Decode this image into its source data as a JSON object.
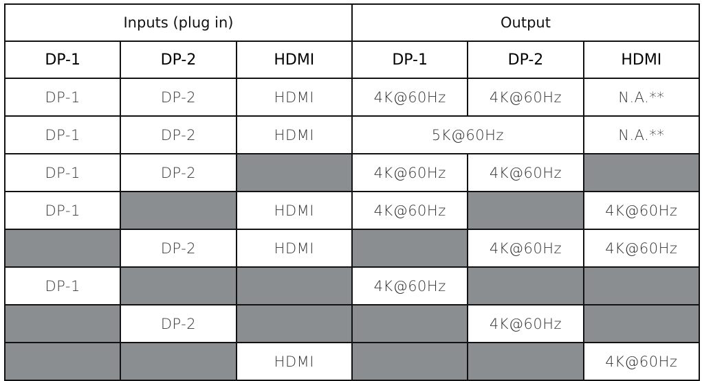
{
  "header": {
    "inputs_label": "Inputs (plug in)",
    "output_label": "Output",
    "input_columns": [
      "DP-1",
      "DP-2",
      "HDMI"
    ],
    "output_columns": [
      "DP-1",
      "DP-2",
      "HDMI"
    ]
  },
  "colors": {
    "unavailable": "#8b8e90",
    "border": "#111111"
  },
  "rows": [
    [
      "DP-1",
      "DP-2",
      "HDMI",
      "4K@60Hz",
      "4K@60Hz",
      "N.A.**"
    ],
    [
      "DP-1",
      "DP-2",
      "HDMI",
      "5K@60Hz",
      "N.A.**"
    ],
    [
      "DP-1",
      "DP-2",
      null,
      "4K@60Hz",
      "4K@60Hz",
      null
    ],
    [
      "DP-1",
      null,
      "HDMI",
      "4K@60Hz",
      null,
      "4K@60Hz"
    ],
    [
      null,
      "DP-2",
      "HDMI",
      null,
      "4K@60Hz",
      "4K@60Hz"
    ],
    [
      "DP-1",
      null,
      null,
      "4K@60Hz",
      null,
      null
    ],
    [
      null,
      "DP-2",
      null,
      null,
      "4K@60Hz",
      null
    ],
    [
      null,
      null,
      "HDMI",
      null,
      null,
      "4K@60Hz"
    ]
  ]
}
